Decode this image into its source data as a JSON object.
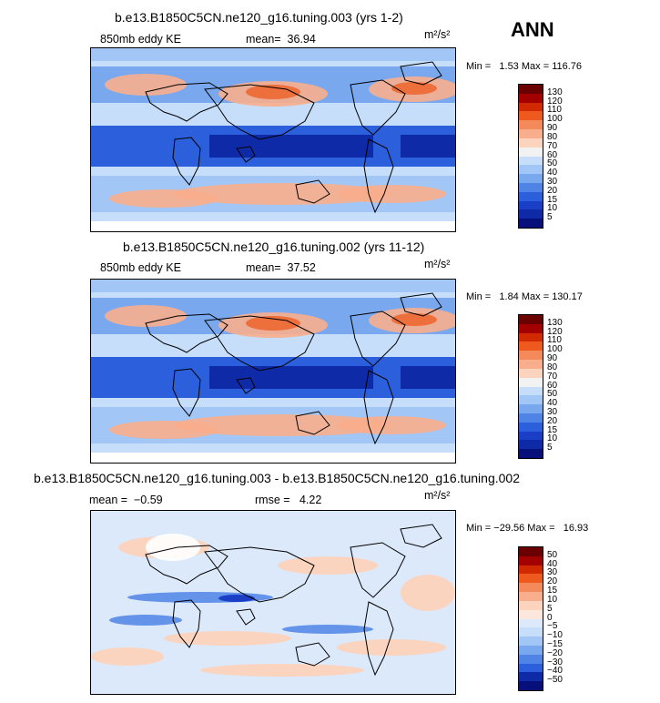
{
  "season": "ANN",
  "panels": [
    {
      "title": "b.e13.B1850C5CN.ne120_g16.tuning.003 (yrs 1-2)",
      "left_label": "850mb eddy KE",
      "center_label": "mean=  36.94",
      "units": "m²/s²",
      "min_label": "Min =",
      "min_value": "1.53",
      "max_label": "Max = 116.76",
      "colorbar_labels": [
        "130",
        "120",
        "110",
        "100",
        "90",
        "80",
        "70",
        "60",
        "50",
        "40",
        "30",
        "20",
        "15",
        "10",
        "5"
      ]
    },
    {
      "title": "b.e13.B1850C5CN.ne120_g16.tuning.002 (yrs 11-12)",
      "left_label": "850mb eddy KE",
      "center_label": "mean=  37.52",
      "units": "m²/s²",
      "min_label": "Min =",
      "min_value": "1.84",
      "max_label": "Max = 130.17",
      "colorbar_labels": [
        "130",
        "120",
        "110",
        "100",
        "90",
        "80",
        "70",
        "60",
        "50",
        "40",
        "30",
        "20",
        "15",
        "10",
        "5"
      ]
    },
    {
      "title": "b.e13.B1850C5CN.ne120_g16.tuning.003 - b.e13.B1850C5CN.ne120_g16.tuning.002",
      "left_label": "mean =  −0.59",
      "center_label": "rmse =   4.22",
      "units": "m²/s²",
      "min_label": "Min =",
      "min_value": "−29.56",
      "max_label": "Max =   16.93",
      "colorbar_labels": [
        "50",
        "40",
        "30",
        "20",
        "15",
        "10",
        "5",
        "0",
        "−5",
        "−10",
        "−15",
        "−20",
        "−30",
        "−40",
        "−50"
      ]
    }
  ],
  "colors": {
    "abs_scale": [
      "#6b0000",
      "#a30000",
      "#d22a00",
      "#ee5a1e",
      "#f48a5c",
      "#f8ae8c",
      "#fcd3bd",
      "#f2f2f2",
      "#c6defa",
      "#a2c6f5",
      "#7aa8ee",
      "#4f84e6",
      "#2c5fdc",
      "#1a3fc6",
      "#0e2aa6",
      "#060f7a"
    ],
    "diff_scale": [
      "#6b0000",
      "#a30000",
      "#d22a00",
      "#ee5a1e",
      "#f48a5c",
      "#f8ae8c",
      "#fcd3bd",
      "#fbe7db",
      "#dce9fb",
      "#c6defa",
      "#a2c6f5",
      "#7aa8ee",
      "#4f84e6",
      "#2c5fdc",
      "#0e2aa6",
      "#060f7a"
    ],
    "coast": "#000000"
  },
  "chart_data": [
    {
      "type": "heatmap",
      "title": "b.e13.B1850C5CN.ne120_g16.tuning.003 (yrs 1-2)",
      "variable": "850mb eddy KE",
      "units": "m2/s2",
      "mean": 36.94,
      "min": 1.53,
      "max": 116.76,
      "contour_levels": [
        5,
        10,
        15,
        20,
        30,
        40,
        50,
        60,
        70,
        80,
        90,
        100,
        110,
        120,
        130
      ]
    },
    {
      "type": "heatmap",
      "title": "b.e13.B1850C5CN.ne120_g16.tuning.002 (yrs 11-12)",
      "variable": "850mb eddy KE",
      "units": "m2/s2",
      "mean": 37.52,
      "min": 1.84,
      "max": 130.17,
      "contour_levels": [
        5,
        10,
        15,
        20,
        30,
        40,
        50,
        60,
        70,
        80,
        90,
        100,
        110,
        120,
        130
      ]
    },
    {
      "type": "heatmap",
      "title": "b.e13.B1850C5CN.ne120_g16.tuning.003 - b.e13.B1850C5CN.ne120_g16.tuning.002",
      "units": "m2/s2",
      "mean": -0.59,
      "rmse": 4.22,
      "min": -29.56,
      "max": 16.93,
      "contour_levels": [
        -50,
        -40,
        -30,
        -20,
        -15,
        -10,
        -5,
        0,
        5,
        10,
        15,
        20,
        30,
        40,
        50
      ]
    }
  ]
}
